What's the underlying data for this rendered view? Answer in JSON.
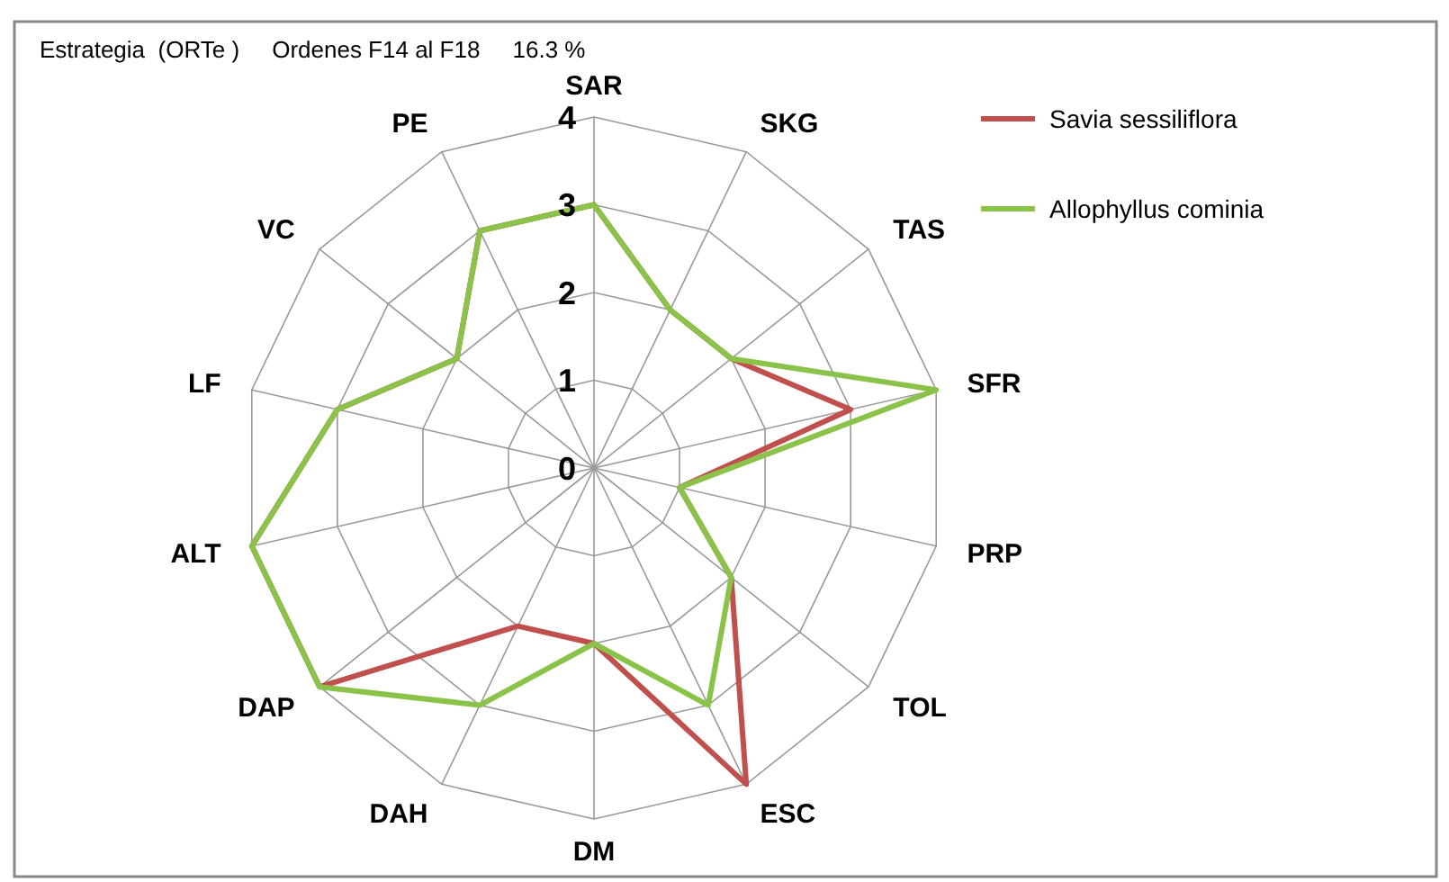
{
  "chart_data": {
    "type": "radar",
    "title": "Estrategia  (ORTe )     Ordenes F14 al F18     16.3 %",
    "categories": [
      "SAR",
      "SKG",
      "TAS",
      "SFR",
      "PRP",
      "TOL",
      "ESC",
      "DM",
      "DAH",
      "DAP",
      "ALT",
      "LF",
      "VC",
      "PE"
    ],
    "ylim": [
      0,
      4
    ],
    "yticks": [
      0,
      1,
      2,
      3,
      4
    ],
    "grid": true,
    "legend": "top right",
    "marker": "none",
    "series": [
      {
        "name": "Savia sessiliflora",
        "color": "#c0504d",
        "values": [
          3,
          2,
          2,
          3,
          1,
          2,
          4,
          2,
          2,
          4,
          4,
          3,
          2,
          3
        ]
      },
      {
        "name": "Allophyllus cominia",
        "color": "#8bc34a",
        "values": [
          3,
          2,
          2,
          4,
          1,
          2,
          3,
          2,
          3,
          4,
          4,
          3,
          2,
          3
        ]
      }
    ]
  }
}
